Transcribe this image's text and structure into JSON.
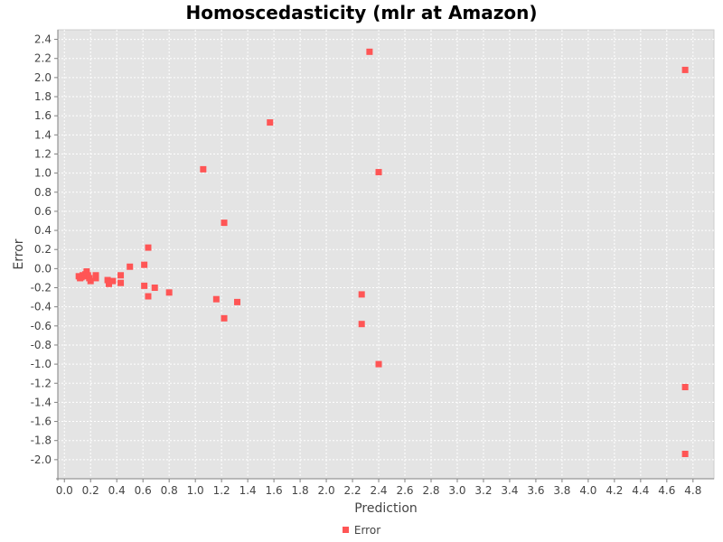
{
  "chart_data": {
    "type": "scatter",
    "title": "Homoscedasticity (mlr at Amazon)",
    "xlabel": "Prediction",
    "ylabel": "Error",
    "xlim": [
      -0.05,
      4.96
    ],
    "ylim": [
      -2.2,
      2.5
    ],
    "x_ticks": [
      "0.0",
      "0.2",
      "0.4",
      "0.6",
      "0.8",
      "1.0",
      "1.2",
      "1.4",
      "1.6",
      "1.8",
      "2.0",
      "2.2",
      "2.4",
      "2.6",
      "2.8",
      "3.0",
      "3.2",
      "3.4",
      "3.6",
      "3.8",
      "4.0",
      "4.2",
      "4.4",
      "4.6",
      "4.8"
    ],
    "y_ticks": [
      "2.4",
      "2.2",
      "2.0",
      "1.8",
      "1.6",
      "1.4",
      "1.2",
      "1.0",
      "0.8",
      "0.6",
      "0.4",
      "0.2",
      "0.0",
      "-0.2",
      "-0.4",
      "-0.6",
      "-0.8",
      "-1.0",
      "-1.2",
      "-1.4",
      "-1.6",
      "-1.8",
      "-2.0"
    ],
    "grid": true,
    "legend_position": "bottom",
    "colors": {
      "series": "#ff5555",
      "plot_background": "#e4e4e4",
      "gridline": "#ffffff"
    },
    "series": [
      {
        "name": "Error",
        "points": [
          [
            0.11,
            -0.08
          ],
          [
            0.12,
            -0.1
          ],
          [
            0.13,
            -0.09
          ],
          [
            0.14,
            -0.07
          ],
          [
            0.15,
            -0.08
          ],
          [
            0.16,
            -0.06
          ],
          [
            0.17,
            -0.03
          ],
          [
            0.18,
            -0.07
          ],
          [
            0.19,
            -0.1
          ],
          [
            0.2,
            -0.13
          ],
          [
            0.24,
            -0.07
          ],
          [
            0.24,
            -0.1
          ],
          [
            0.33,
            -0.12
          ],
          [
            0.34,
            -0.16
          ],
          [
            0.37,
            -0.13
          ],
          [
            0.43,
            -0.07
          ],
          [
            0.43,
            -0.15
          ],
          [
            0.5,
            0.02
          ],
          [
            0.61,
            0.04
          ],
          [
            0.61,
            -0.18
          ],
          [
            0.64,
            0.22
          ],
          [
            0.64,
            -0.29
          ],
          [
            0.69,
            -0.2
          ],
          [
            0.8,
            -0.25
          ],
          [
            1.06,
            1.04
          ],
          [
            1.16,
            -0.32
          ],
          [
            1.22,
            0.48
          ],
          [
            1.22,
            -0.52
          ],
          [
            1.32,
            -0.35
          ],
          [
            1.57,
            1.53
          ],
          [
            2.27,
            -0.27
          ],
          [
            2.27,
            -0.58
          ],
          [
            2.33,
            2.27
          ],
          [
            2.4,
            1.01
          ],
          [
            2.4,
            -1.0
          ],
          [
            4.74,
            2.08
          ],
          [
            4.74,
            -1.24
          ],
          [
            4.74,
            -1.94
          ]
        ]
      }
    ]
  },
  "legend": {
    "label": "Error"
  }
}
